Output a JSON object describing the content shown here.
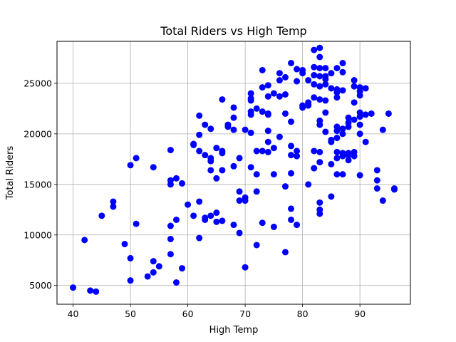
{
  "chart_data": {
    "type": "scatter",
    "title": "Total Riders vs High Temp",
    "xlabel": "High Temp",
    "ylabel": "Total Riders",
    "xlim": [
      37.2,
      98.8
    ],
    "ylim": [
      3150,
      29150
    ],
    "xticks": [
      40,
      50,
      60,
      70,
      80,
      90
    ],
    "yticks": [
      5000,
      10000,
      15000,
      20000,
      25000
    ],
    "grid": true,
    "point_color": "#0000ff",
    "points": [
      [
        40,
        4800
      ],
      [
        42,
        9500
      ],
      [
        43,
        4500
      ],
      [
        44,
        4400
      ],
      [
        45,
        11900
      ],
      [
        47,
        13300
      ],
      [
        47,
        12800
      ],
      [
        49,
        9100
      ],
      [
        50,
        16900
      ],
      [
        50,
        7700
      ],
      [
        50,
        5500
      ],
      [
        51,
        17600
      ],
      [
        51,
        11100
      ],
      [
        53,
        5900
      ],
      [
        54,
        16700
      ],
      [
        54,
        7400
      ],
      [
        54,
        6300
      ],
      [
        55,
        6900
      ],
      [
        57,
        18400
      ],
      [
        57,
        15400
      ],
      [
        57,
        15000
      ],
      [
        57,
        10900
      ],
      [
        57,
        9600
      ],
      [
        57,
        8100
      ],
      [
        58,
        15600
      ],
      [
        58,
        11500
      ],
      [
        58,
        5300
      ],
      [
        59,
        15100
      ],
      [
        59,
        6700
      ],
      [
        60,
        13000
      ],
      [
        61,
        19000
      ],
      [
        61,
        18900
      ],
      [
        61,
        11900
      ],
      [
        62,
        21800
      ],
      [
        62,
        19900
      ],
      [
        62,
        18300
      ],
      [
        62,
        13300
      ],
      [
        62,
        9700
      ],
      [
        63,
        20900
      ],
      [
        63,
        17900
      ],
      [
        63,
        11700
      ],
      [
        63,
        11500
      ],
      [
        64,
        20500
      ],
      [
        64,
        17600
      ],
      [
        64,
        17300
      ],
      [
        64,
        16400
      ],
      [
        64,
        11900
      ],
      [
        65,
        18600
      ],
      [
        65,
        15600
      ],
      [
        65,
        12200
      ],
      [
        65,
        11300
      ],
      [
        66,
        23400
      ],
      [
        66,
        18300
      ],
      [
        66,
        18100
      ],
      [
        66,
        16400
      ],
      [
        66,
        11400
      ],
      [
        67,
        20900
      ],
      [
        67,
        20700
      ],
      [
        68,
        22600
      ],
      [
        68,
        21600
      ],
      [
        68,
        20400
      ],
      [
        68,
        16800
      ],
      [
        68,
        11000
      ],
      [
        69,
        17600
      ],
      [
        69,
        14300
      ],
      [
        69,
        13400
      ],
      [
        69,
        10200
      ],
      [
        70,
        20400
      ],
      [
        70,
        13700
      ],
      [
        70,
        13400
      ],
      [
        70,
        6800
      ],
      [
        71,
        24000
      ],
      [
        71,
        23500
      ],
      [
        71,
        23300
      ],
      [
        71,
        22200
      ],
      [
        71,
        21900
      ],
      [
        71,
        20100
      ],
      [
        71,
        16700
      ],
      [
        72,
        22500
      ],
      [
        72,
        18300
      ],
      [
        72,
        16000
      ],
      [
        72,
        14300
      ],
      [
        72,
        9000
      ],
      [
        73,
        26300
      ],
      [
        73,
        24600
      ],
      [
        73,
        22200
      ],
      [
        73,
        18300
      ],
      [
        73,
        11200
      ],
      [
        74,
        24800
      ],
      [
        74,
        23700
      ],
      [
        74,
        22000
      ],
      [
        74,
        21900
      ],
      [
        74,
        20300
      ],
      [
        74,
        19200
      ],
      [
        74,
        18200
      ],
      [
        75,
        24000
      ],
      [
        75,
        18600
      ],
      [
        75,
        16000
      ],
      [
        75,
        10800
      ],
      [
        76,
        26000
      ],
      [
        76,
        25300
      ],
      [
        76,
        23700
      ],
      [
        76,
        19700
      ],
      [
        77,
        25600
      ],
      [
        77,
        23900
      ],
      [
        77,
        22000
      ],
      [
        77,
        14800
      ],
      [
        77,
        8300
      ],
      [
        78,
        27000
      ],
      [
        78,
        21200
      ],
      [
        78,
        18800
      ],
      [
        78,
        17900
      ],
      [
        78,
        16100
      ],
      [
        78,
        12600
      ],
      [
        78,
        11500
      ],
      [
        79,
        26400
      ],
      [
        79,
        25200
      ],
      [
        79,
        18300
      ],
      [
        79,
        17800
      ],
      [
        79,
        11000
      ],
      [
        80,
        26300
      ],
      [
        80,
        26000
      ],
      [
        80,
        22800
      ],
      [
        80,
        22600
      ],
      [
        81,
        25300
      ],
      [
        81,
        23100
      ],
      [
        81,
        22900
      ],
      [
        81,
        22800
      ],
      [
        81,
        15000
      ],
      [
        82,
        28300
      ],
      [
        82,
        26600
      ],
      [
        82,
        25800
      ],
      [
        82,
        24900
      ],
      [
        82,
        23600
      ],
      [
        82,
        18300
      ],
      [
        82,
        16600
      ],
      [
        83,
        28500
      ],
      [
        83,
        27600
      ],
      [
        83,
        26500
      ],
      [
        83,
        25700
      ],
      [
        83,
        24700
      ],
      [
        83,
        23400
      ],
      [
        83,
        21300
      ],
      [
        83,
        20900
      ],
      [
        83,
        18200
      ],
      [
        83,
        17200
      ],
      [
        83,
        13200
      ],
      [
        83,
        12500
      ],
      [
        83,
        12100
      ],
      [
        84,
        26500
      ],
      [
        84,
        25700
      ],
      [
        84,
        25400
      ],
      [
        84,
        24900
      ],
      [
        84,
        23300
      ],
      [
        84,
        22100
      ],
      [
        84,
        20200
      ],
      [
        85,
        26000
      ],
      [
        85,
        24500
      ],
      [
        85,
        19400
      ],
      [
        85,
        19200
      ],
      [
        85,
        17000
      ],
      [
        85,
        13800
      ],
      [
        86,
        26500
      ],
      [
        86,
        24400
      ],
      [
        86,
        24100
      ],
      [
        86,
        23600
      ],
      [
        86,
        20700
      ],
      [
        86,
        20300
      ],
      [
        86,
        19600
      ],
      [
        86,
        18200
      ],
      [
        86,
        17600
      ],
      [
        86,
        16000
      ],
      [
        87,
        27000
      ],
      [
        87,
        26100
      ],
      [
        87,
        24300
      ],
      [
        87,
        20500
      ],
      [
        87,
        20000
      ],
      [
        87,
        18100
      ],
      [
        87,
        17800
      ],
      [
        87,
        16000
      ],
      [
        88,
        21600
      ],
      [
        88,
        21100
      ],
      [
        88,
        20700
      ],
      [
        88,
        18100
      ],
      [
        88,
        17900
      ],
      [
        88,
        17400
      ],
      [
        89,
        25300
      ],
      [
        89,
        24700
      ],
      [
        89,
        23100
      ],
      [
        89,
        21400
      ],
      [
        89,
        18200
      ],
      [
        89,
        17800
      ],
      [
        90,
        24600
      ],
      [
        90,
        24200
      ],
      [
        90,
        23800
      ],
      [
        90,
        22100
      ],
      [
        90,
        21700
      ],
      [
        90,
        20900
      ],
      [
        90,
        20000
      ],
      [
        90,
        15900
      ],
      [
        91,
        24500
      ],
      [
        91,
        21900
      ],
      [
        91,
        19200
      ],
      [
        92,
        22000
      ],
      [
        93,
        16400
      ],
      [
        93,
        15400
      ],
      [
        93,
        14600
      ],
      [
        94,
        20400
      ],
      [
        94,
        13400
      ],
      [
        95,
        22000
      ],
      [
        96,
        14600
      ],
      [
        96,
        14500
      ]
    ]
  }
}
